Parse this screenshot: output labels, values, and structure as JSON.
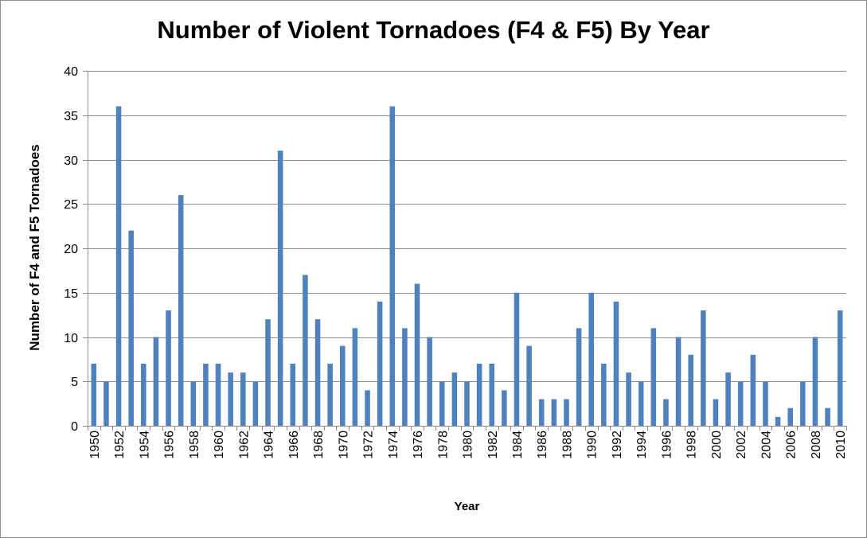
{
  "chart_data": {
    "type": "bar",
    "title": "Number of Violent Tornadoes (F4 & F5) By Year",
    "xlabel": "Year",
    "ylabel": "Number of F4 and F5 Tornadoes",
    "ylim": [
      0,
      40
    ],
    "yticks": [
      0,
      5,
      10,
      15,
      20,
      25,
      30,
      35,
      40
    ],
    "grid": "horizontal",
    "legend": "none",
    "bar_color": "#4f81bd",
    "x_tick_labels": [
      "1950",
      "1952",
      "1954",
      "1956",
      "1958",
      "1960",
      "1962",
      "1964",
      "1966",
      "1968",
      "1970",
      "1972",
      "1974",
      "1976",
      "1978",
      "1980",
      "1982",
      "1984",
      "1986",
      "1988",
      "1990",
      "1992",
      "1994",
      "1996",
      "1998",
      "2000",
      "2002",
      "2004",
      "2006",
      "2008",
      "2010"
    ],
    "categories": [
      "1950",
      "1951",
      "1952",
      "1953",
      "1954",
      "1955",
      "1956",
      "1957",
      "1958",
      "1959",
      "1960",
      "1961",
      "1962",
      "1963",
      "1964",
      "1965",
      "1966",
      "1967",
      "1968",
      "1969",
      "1970",
      "1971",
      "1972",
      "1973",
      "1974",
      "1975",
      "1976",
      "1977",
      "1978",
      "1979",
      "1980",
      "1981",
      "1982",
      "1983",
      "1984",
      "1985",
      "1986",
      "1987",
      "1988",
      "1989",
      "1990",
      "1991",
      "1992",
      "1993",
      "1994",
      "1995",
      "1996",
      "1997",
      "1998",
      "1999",
      "2000",
      "2001",
      "2002",
      "2003",
      "2004",
      "2005",
      "2006",
      "2007",
      "2008",
      "2009",
      "2010"
    ],
    "values": [
      7,
      5,
      36,
      22,
      7,
      10,
      13,
      26,
      5,
      7,
      7,
      6,
      6,
      5,
      12,
      31,
      7,
      17,
      12,
      7,
      9,
      11,
      4,
      14,
      36,
      11,
      16,
      10,
      5,
      6,
      5,
      7,
      7,
      4,
      15,
      9,
      3,
      3,
      3,
      11,
      15,
      7,
      14,
      6,
      5,
      11,
      3,
      10,
      8,
      13,
      3,
      6,
      5,
      8,
      5,
      1,
      2,
      5,
      10,
      2,
      13
    ]
  }
}
